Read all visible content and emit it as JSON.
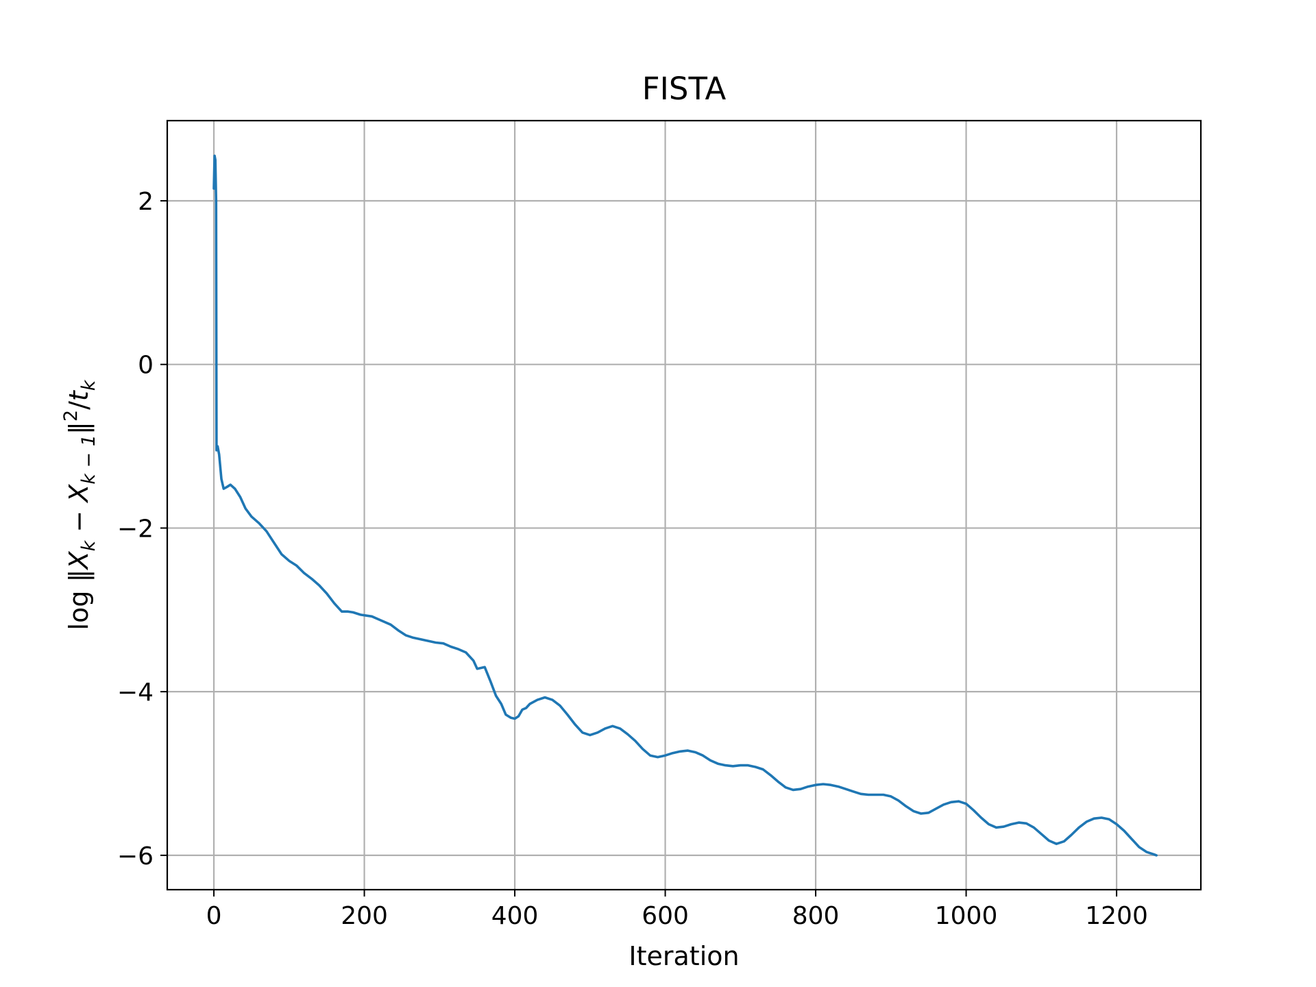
{
  "chart_data": {
    "type": "line",
    "title": "FISTA",
    "xlabel": "Iteration",
    "ylabel": "log ‖X_k − X_{k−1}‖²/t_k",
    "xlim": [
      -62,
      1312
    ],
    "ylim": [
      -6.42,
      2.98
    ],
    "x_ticks": [
      0,
      200,
      400,
      600,
      800,
      1000,
      1200
    ],
    "x_tick_labels": [
      "0",
      "200",
      "400",
      "600",
      "800",
      "1000",
      "1200"
    ],
    "y_ticks": [
      2,
      0,
      -2,
      -4,
      -6
    ],
    "y_tick_labels": [
      "2",
      "0",
      "−2",
      "−4",
      "−6"
    ],
    "grid": true,
    "series": [
      {
        "color": "#1f77b4",
        "points": [
          [
            0,
            2.15
          ],
          [
            1,
            2.55
          ],
          [
            2,
            2.5
          ],
          [
            3,
            2.0
          ],
          [
            3.5,
            -1.05
          ],
          [
            5,
            -1.0
          ],
          [
            7,
            -1.1
          ],
          [
            10,
            -1.4
          ],
          [
            13,
            -1.52
          ],
          [
            17,
            -1.5
          ],
          [
            22,
            -1.47
          ],
          [
            28,
            -1.52
          ],
          [
            35,
            -1.62
          ],
          [
            42,
            -1.76
          ],
          [
            50,
            -1.86
          ],
          [
            60,
            -1.94
          ],
          [
            70,
            -2.04
          ],
          [
            80,
            -2.18
          ],
          [
            90,
            -2.32
          ],
          [
            100,
            -2.4
          ],
          [
            110,
            -2.46
          ],
          [
            120,
            -2.55
          ],
          [
            130,
            -2.62
          ],
          [
            140,
            -2.7
          ],
          [
            150,
            -2.8
          ],
          [
            160,
            -2.92
          ],
          [
            170,
            -3.02
          ],
          [
            178,
            -3.02
          ],
          [
            185,
            -3.03
          ],
          [
            195,
            -3.06
          ],
          [
            210,
            -3.08
          ],
          [
            220,
            -3.12
          ],
          [
            235,
            -3.18
          ],
          [
            245,
            -3.25
          ],
          [
            255,
            -3.31
          ],
          [
            265,
            -3.34
          ],
          [
            275,
            -3.36
          ],
          [
            285,
            -3.38
          ],
          [
            295,
            -3.4
          ],
          [
            305,
            -3.41
          ],
          [
            315,
            -3.45
          ],
          [
            325,
            -3.48
          ],
          [
            335,
            -3.52
          ],
          [
            345,
            -3.62
          ],
          [
            350,
            -3.72
          ],
          [
            360,
            -3.7
          ],
          [
            368,
            -3.88
          ],
          [
            375,
            -4.05
          ],
          [
            382,
            -4.15
          ],
          [
            388,
            -4.28
          ],
          [
            395,
            -4.32
          ],
          [
            400,
            -4.33
          ],
          [
            405,
            -4.3
          ],
          [
            410,
            -4.22
          ],
          [
            415,
            -4.2
          ],
          [
            420,
            -4.15
          ],
          [
            430,
            -4.1
          ],
          [
            440,
            -4.07
          ],
          [
            450,
            -4.1
          ],
          [
            460,
            -4.17
          ],
          [
            470,
            -4.28
          ],
          [
            480,
            -4.4
          ],
          [
            490,
            -4.5
          ],
          [
            500,
            -4.53
          ],
          [
            510,
            -4.5
          ],
          [
            520,
            -4.45
          ],
          [
            530,
            -4.42
          ],
          [
            540,
            -4.45
          ],
          [
            550,
            -4.52
          ],
          [
            560,
            -4.6
          ],
          [
            570,
            -4.7
          ],
          [
            580,
            -4.78
          ],
          [
            590,
            -4.8
          ],
          [
            600,
            -4.78
          ],
          [
            610,
            -4.75
          ],
          [
            620,
            -4.73
          ],
          [
            630,
            -4.72
          ],
          [
            640,
            -4.74
          ],
          [
            650,
            -4.78
          ],
          [
            660,
            -4.84
          ],
          [
            670,
            -4.88
          ],
          [
            680,
            -4.9
          ],
          [
            690,
            -4.91
          ],
          [
            700,
            -4.9
          ],
          [
            710,
            -4.9
          ],
          [
            720,
            -4.92
          ],
          [
            730,
            -4.95
          ],
          [
            740,
            -5.02
          ],
          [
            750,
            -5.1
          ],
          [
            760,
            -5.17
          ],
          [
            770,
            -5.2
          ],
          [
            780,
            -5.19
          ],
          [
            790,
            -5.16
          ],
          [
            800,
            -5.14
          ],
          [
            810,
            -5.13
          ],
          [
            820,
            -5.14
          ],
          [
            830,
            -5.16
          ],
          [
            840,
            -5.19
          ],
          [
            850,
            -5.22
          ],
          [
            860,
            -5.25
          ],
          [
            870,
            -5.26
          ],
          [
            880,
            -5.26
          ],
          [
            890,
            -5.26
          ],
          [
            900,
            -5.28
          ],
          [
            910,
            -5.33
          ],
          [
            920,
            -5.4
          ],
          [
            930,
            -5.46
          ],
          [
            940,
            -5.49
          ],
          [
            950,
            -5.48
          ],
          [
            960,
            -5.43
          ],
          [
            970,
            -5.38
          ],
          [
            980,
            -5.35
          ],
          [
            990,
            -5.34
          ],
          [
            1000,
            -5.37
          ],
          [
            1010,
            -5.45
          ],
          [
            1020,
            -5.54
          ],
          [
            1030,
            -5.62
          ],
          [
            1040,
            -5.66
          ],
          [
            1050,
            -5.65
          ],
          [
            1060,
            -5.62
          ],
          [
            1070,
            -5.6
          ],
          [
            1080,
            -5.61
          ],
          [
            1090,
            -5.66
          ],
          [
            1100,
            -5.74
          ],
          [
            1110,
            -5.82
          ],
          [
            1120,
            -5.86
          ],
          [
            1130,
            -5.83
          ],
          [
            1140,
            -5.75
          ],
          [
            1150,
            -5.66
          ],
          [
            1160,
            -5.59
          ],
          [
            1170,
            -5.55
          ],
          [
            1180,
            -5.54
          ],
          [
            1190,
            -5.56
          ],
          [
            1200,
            -5.62
          ],
          [
            1210,
            -5.7
          ],
          [
            1220,
            -5.8
          ],
          [
            1230,
            -5.9
          ],
          [
            1240,
            -5.96
          ],
          [
            1250,
            -5.99
          ],
          [
            1253,
            -6.0
          ]
        ]
      }
    ]
  }
}
